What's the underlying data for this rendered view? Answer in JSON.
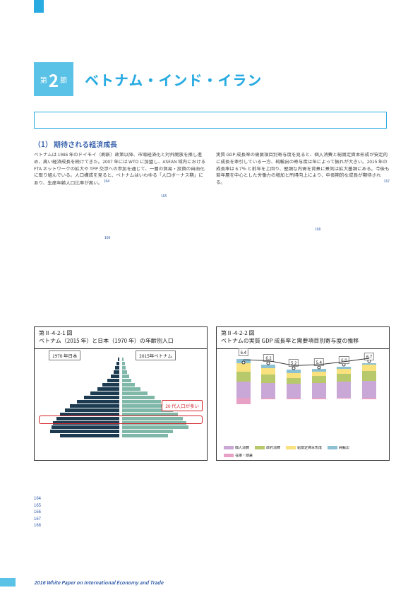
{
  "header": {
    "section_prefix": "第",
    "section_number": "2",
    "section_suffix": "節",
    "section_title": "ベトナム・インド・イラン"
  },
  "subsection": {
    "number": "（1）",
    "title": "期待される経済成長"
  },
  "body_left": "ベトナムは 1986 年のドイモイ（刷新）政策以降、市場経済化と対外開放を推し進め、高い経済成長を続けてきた。2007 年には WTO に加盟し、ASEAN 域内における FTA ネットワークの拡大や TPP 交渉への参加を通じて、一層の貿易・投資の自由化に取り組んでいる。人口構成を見ると、ベトナムはいわゆる「人口ボーナス期」にあり、生産年齢人口比率が高い。",
  "body_right": "実質 GDP 成長率の需要項目別寄与度を見ると、個人消費と総固定資本形成が安定的に成長を牽引している一方、純輸出の寄与度は年によって振れが大きい。2015 年の成長率は 6.7％ と前年を上回り、堅調な内需を背景に景気は拡大基調にある。今後も若年層を中心とした労働力の増加と所得向上により、中長期的な成長が期待される。",
  "sup_refs": {
    "a": "164",
    "b": "165",
    "c": "166",
    "d": "167",
    "e": "168"
  },
  "chart1": {
    "id": "第Ⅱ-4-2-1 図",
    "title": "ベトナム（2015 年）と日本（1970 年）の年齢別人口",
    "label_jp": "1970 年日本",
    "label_vn": "2015年ベトナム",
    "callout": "20 代人口が多い",
    "jp_bars": [
      2,
      3,
      5,
      7,
      10,
      14,
      20,
      26,
      34,
      42,
      50,
      58,
      64,
      70,
      74,
      78,
      80,
      82,
      70
    ],
    "vn_bars": [
      2,
      3,
      4,
      6,
      8,
      11,
      15,
      22,
      30,
      38,
      46,
      54,
      60,
      66,
      72,
      76,
      78,
      60,
      54
    ],
    "highlight_index_from_top": 14,
    "colors": {
      "jp": "#1c3b50",
      "vn": "#7fb7a8",
      "highlight": "#d3232a"
    }
  },
  "chart2": {
    "id": "第Ⅱ-4-2-2 図",
    "title": "ベトナムの実質 GDP 成長率と需要項目別寄与度の推移",
    "years": [
      "2010",
      "2011",
      "2012",
      "2013",
      "2014",
      "2015"
    ],
    "gdp": [
      6.4,
      6.2,
      5.2,
      5.4,
      6.0,
      6.7
    ],
    "stacks": [
      {
        "pos": [
          {
            "c": "#c9a8d8",
            "v": 3.2
          },
          {
            "c": "#b7c96a",
            "v": 2.0
          },
          {
            "c": "#f9e27d",
            "v": 1.8
          },
          {
            "c": "#8cc0d3",
            "v": 0.8
          }
        ],
        "neg": [
          {
            "c": "#e7a1c4",
            "v": 1.4
          }
        ]
      },
      {
        "pos": [
          {
            "c": "#c9a8d8",
            "v": 3.0
          },
          {
            "c": "#b7c96a",
            "v": 1.6
          },
          {
            "c": "#f9e27d",
            "v": 1.4
          },
          {
            "c": "#8cc0d3",
            "v": 0.6
          }
        ],
        "neg": [
          {
            "c": "#e7a1c4",
            "v": 0.4
          }
        ]
      },
      {
        "pos": [
          {
            "c": "#c9a8d8",
            "v": 2.8
          },
          {
            "c": "#b7c96a",
            "v": 1.2
          },
          {
            "c": "#f9e27d",
            "v": 1.0
          },
          {
            "c": "#8cc0d3",
            "v": 0.6
          }
        ],
        "neg": [
          {
            "c": "#e7a1c4",
            "v": 0.4
          }
        ]
      },
      {
        "pos": [
          {
            "c": "#c9a8d8",
            "v": 3.0
          },
          {
            "c": "#b7c96a",
            "v": 1.4
          },
          {
            "c": "#f9e27d",
            "v": 0.8
          },
          {
            "c": "#8cc0d3",
            "v": 0.6
          }
        ],
        "neg": [
          {
            "c": "#e7a1c4",
            "v": 0.4
          }
        ]
      },
      {
        "pos": [
          {
            "c": "#c9a8d8",
            "v": 3.2
          },
          {
            "c": "#b7c96a",
            "v": 1.6
          },
          {
            "c": "#f9e27d",
            "v": 1.0
          },
          {
            "c": "#8cc0d3",
            "v": 0.4
          }
        ],
        "neg": [
          {
            "c": "#e7a1c4",
            "v": 0.2
          }
        ]
      },
      {
        "pos": [
          {
            "c": "#c9a8d8",
            "v": 3.4
          },
          {
            "c": "#b7c96a",
            "v": 2.0
          },
          {
            "c": "#f9e27d",
            "v": 1.2
          },
          {
            "c": "#8cc0d3",
            "v": 0.4
          }
        ],
        "neg": [
          {
            "c": "#e7a1c4",
            "v": 0.3
          }
        ]
      }
    ],
    "legend": [
      {
        "c": "#c9a8d8",
        "l": "個人消費"
      },
      {
        "c": "#b7c96a",
        "l": "政府消費"
      },
      {
        "c": "#f9e27d",
        "l": "総固定資本形成"
      },
      {
        "c": "#8cc0d3",
        "l": "純輸出"
      },
      {
        "c": "#e7a1c4",
        "l": "在庫・誤差"
      }
    ],
    "scale_unit": 7
  },
  "footnotes": [
    {
      "n": "164",
      "t": ""
    },
    {
      "n": "165",
      "t": ""
    },
    {
      "n": "166",
      "t": ""
    },
    {
      "n": "167",
      "t": ""
    },
    {
      "n": "168",
      "t": ""
    }
  ],
  "footer": "2016 White Paper on International Economy and Trade"
}
